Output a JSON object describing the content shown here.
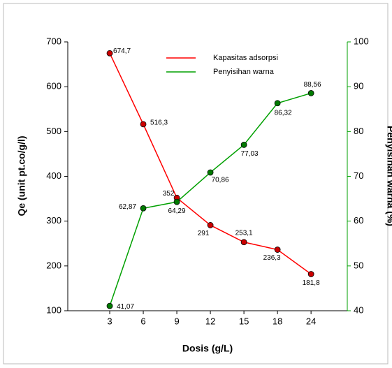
{
  "chart_data": {
    "type": "line",
    "xlabel": "Dosis (g/L)",
    "ylabel": "Qe (unit pt.co/g/l)",
    "y2label": "Penyisihan warna (%)",
    "categories": [
      "3",
      "6",
      "9",
      "12",
      "15",
      "18",
      "24"
    ],
    "ylim": [
      100,
      700
    ],
    "yticks": [
      100,
      200,
      300,
      400,
      500,
      600,
      700
    ],
    "y2lim": [
      40,
      100
    ],
    "y2ticks": [
      40,
      50,
      60,
      70,
      80,
      90,
      100
    ],
    "series": [
      {
        "name": "Kapasitas adsorpsi",
        "color": "#ff0000",
        "marker_color": "#cc0000",
        "values": [
          674.7,
          516.3,
          352,
          291,
          253.1,
          236.3,
          181.8
        ],
        "value_labels": [
          "674,7",
          "516,3",
          "352",
          "291",
          "253,1",
          "236,3",
          "181,8"
        ]
      },
      {
        "name": "Penyisihan warna",
        "color": "#00a000",
        "marker_color": "#007a00",
        "axis": "y2",
        "values": [
          41.07,
          62.87,
          64.29,
          70.86,
          77.03,
          86.32,
          88.56
        ],
        "value_labels": [
          "41,07",
          "62,87",
          "64,29",
          "70,86",
          "77,03",
          "86,32",
          "88,56"
        ]
      }
    ]
  }
}
